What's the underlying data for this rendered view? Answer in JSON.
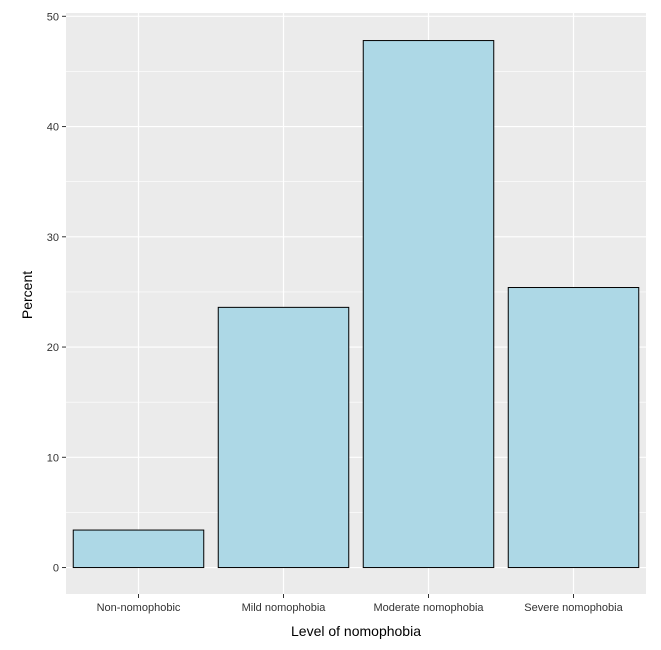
{
  "chart_data": {
    "type": "bar",
    "title": "",
    "xlabel": "Level of nomophobia",
    "ylabel": "Percent",
    "categories": [
      "Non-nomophobic",
      "Mild nomophobia",
      "Moderate nomophobia",
      "Severe nomophobia"
    ],
    "values": [
      3.4,
      23.6,
      47.8,
      25.4
    ],
    "ylim": [
      -2.4,
      50.3
    ],
    "yticks": [
      0,
      10,
      20,
      30,
      40,
      50
    ],
    "ytick_labels": [
      "0",
      "10",
      "20",
      "30",
      "40",
      "50"
    ],
    "grid": true,
    "legend": "none",
    "colors": {
      "bar_fill": "#add8e6",
      "bar_stroke": "#000000",
      "panel_background": "#ebebeb",
      "grid_major": "#ffffff",
      "tick_text": "#333333"
    }
  }
}
